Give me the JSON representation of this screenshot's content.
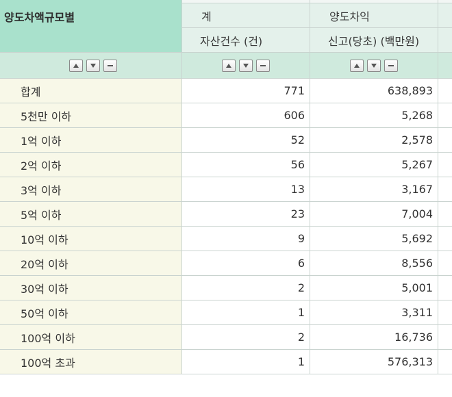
{
  "table": {
    "row_header_title": "양도차액규모별",
    "col_group_total": "계",
    "col_group_gain": "양도차익",
    "col_sub_count": "자산건수 (건)",
    "col_sub_amount": "신고(당초) (백만원)",
    "rows": [
      {
        "label": "합계",
        "count": "771",
        "amount": "638,893"
      },
      {
        "label": "5천만 이하",
        "count": "606",
        "amount": "5,268"
      },
      {
        "label": "1억 이하",
        "count": "52",
        "amount": "2,578"
      },
      {
        "label": "2억 이하",
        "count": "56",
        "amount": "5,267"
      },
      {
        "label": "3억 이하",
        "count": "13",
        "amount": "3,167"
      },
      {
        "label": "5억 이하",
        "count": "23",
        "amount": "7,004"
      },
      {
        "label": "10억 이하",
        "count": "9",
        "amount": "5,692"
      },
      {
        "label": "20억 이하",
        "count": "6",
        "amount": "8,556"
      },
      {
        "label": "30억 이하",
        "count": "2",
        "amount": "5,001"
      },
      {
        "label": "50억 이하",
        "count": "1",
        "amount": "3,311"
      },
      {
        "label": "100억 이하",
        "count": "2",
        "amount": "16,736"
      },
      {
        "label": "100억 초과",
        "count": "1",
        "amount": "576,313"
      }
    ]
  },
  "controls": {
    "icons": [
      "sort-up-icon",
      "sort-down-icon",
      "remove-icon"
    ]
  }
}
